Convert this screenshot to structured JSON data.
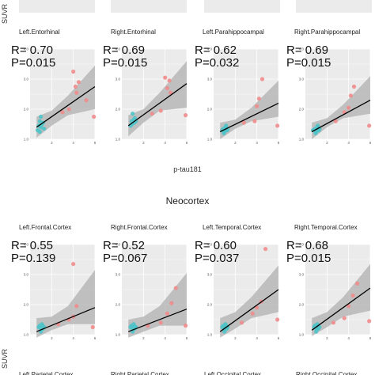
{
  "figure": {
    "y_axis_label": "SUVR",
    "x_axis_label": "p-tau181",
    "section_title": "Neocortex",
    "tick_labels_y": [
      "1.0",
      "2.0",
      "3.0",
      "4.0"
    ],
    "tick_labels_x": [
      "2",
      "4",
      "6"
    ],
    "bottom_partial_titles": [
      "Left.Parietal.Cortex",
      "Right.Parietal.Cortex",
      "Left.Occipital.Cortex",
      "Right.Occipital.Cortex"
    ],
    "colors": {
      "panel_bg": "#ebebeb",
      "grid": "#ffffff",
      "group_a": "#4fc3c8",
      "group_b": "#f08c8c",
      "fit": "#000000",
      "ci": "#b0b0b0"
    }
  },
  "chart_data": [
    {
      "type": "scatter",
      "title": "Left.Entorhinal",
      "stat_r": "R= 0.70",
      "stat_p": "P=0.015",
      "xlim": [
        0,
        6
      ],
      "ylim": [
        1,
        4
      ],
      "points_a": [
        [
          0.7,
          1.3
        ],
        [
          0.8,
          1.45
        ],
        [
          0.9,
          1.6
        ],
        [
          1.0,
          1.75
        ],
        [
          1.1,
          1.5
        ],
        [
          1.2,
          1.55
        ],
        [
          0.9,
          1.25
        ],
        [
          1.0,
          1.4
        ],
        [
          1.3,
          1.35
        ]
      ],
      "points_b": [
        [
          3.0,
          1.9
        ],
        [
          3.6,
          2.0
        ],
        [
          4.0,
          3.25
        ],
        [
          4.2,
          2.75
        ],
        [
          4.3,
          2.55
        ],
        [
          4.5,
          2.9
        ],
        [
          5.2,
          2.3
        ],
        [
          5.9,
          1.75
        ]
      ],
      "fit": [
        [
          0.6,
          1.4
        ],
        [
          6.0,
          2.75
        ]
      ],
      "ci_band": [
        [
          0.6,
          1.05,
          1.75
        ],
        [
          2.0,
          1.45,
          1.95
        ],
        [
          3.5,
          1.8,
          2.45
        ],
        [
          6.0,
          2.0,
          3.45
        ]
      ]
    },
    {
      "type": "scatter",
      "title": "Right.Entorhinal",
      "stat_r": "R= 0.69",
      "stat_p": "P=0.015",
      "xlim": [
        0,
        6
      ],
      "ylim": [
        1,
        4
      ],
      "points_a": [
        [
          0.8,
          1.45
        ],
        [
          0.9,
          1.6
        ],
        [
          1.0,
          1.85
        ],
        [
          1.1,
          1.65
        ],
        [
          1.2,
          1.7
        ],
        [
          0.95,
          1.5
        ],
        [
          1.15,
          1.55
        ],
        [
          1.3,
          1.6
        ]
      ],
      "points_b": [
        [
          2.8,
          1.85
        ],
        [
          3.6,
          1.95
        ],
        [
          4.0,
          3.05
        ],
        [
          4.2,
          2.7
        ],
        [
          4.4,
          2.95
        ],
        [
          4.5,
          2.55
        ],
        [
          5.9,
          1.8
        ]
      ],
      "fit": [
        [
          0.6,
          1.45
        ],
        [
          6.0,
          2.85
        ]
      ],
      "ci_band": [
        [
          0.6,
          1.1,
          1.8
        ],
        [
          2.0,
          1.55,
          2.0
        ],
        [
          3.5,
          1.95,
          2.55
        ],
        [
          6.0,
          2.05,
          3.6
        ]
      ]
    },
    {
      "type": "scatter",
      "title": "Left.Parahippocampal",
      "stat_r": "R= 0.62",
      "stat_p": "P=0.032",
      "xlim": [
        0,
        6
      ],
      "ylim": [
        1,
        4
      ],
      "points_a": [
        [
          0.8,
          1.3
        ],
        [
          0.9,
          1.35
        ],
        [
          1.0,
          1.25
        ],
        [
          1.1,
          1.4
        ],
        [
          1.2,
          1.3
        ],
        [
          1.3,
          1.35
        ],
        [
          0.95,
          1.2
        ],
        [
          1.15,
          1.45
        ],
        [
          1.25,
          1.3
        ]
      ],
      "points_b": [
        [
          2.8,
          1.55
        ],
        [
          3.8,
          1.6
        ],
        [
          4.0,
          2.1
        ],
        [
          4.2,
          2.35
        ],
        [
          4.5,
          3.0
        ],
        [
          5.9,
          1.45
        ]
      ],
      "fit": [
        [
          0.6,
          1.25
        ],
        [
          6.0,
          2.2
        ]
      ],
      "ci_band": [
        [
          0.6,
          1.0,
          1.55
        ],
        [
          2.0,
          1.35,
          1.65
        ],
        [
          3.5,
          1.6,
          2.05
        ],
        [
          6.0,
          1.75,
          2.95
        ]
      ]
    },
    {
      "type": "scatter",
      "title": "Right.Parahippocampal",
      "stat_r": "R= 0.69",
      "stat_p": "P=0.015",
      "xlim": [
        0,
        6
      ],
      "ylim": [
        1,
        4
      ],
      "points_a": [
        [
          0.7,
          1.3
        ],
        [
          0.9,
          1.35
        ],
        [
          1.0,
          1.25
        ],
        [
          1.1,
          1.4
        ],
        [
          1.2,
          1.3
        ],
        [
          1.3,
          1.35
        ],
        [
          0.95,
          1.2
        ],
        [
          1.15,
          1.45
        ],
        [
          1.25,
          1.3
        ]
      ],
      "points_b": [
        [
          2.8,
          1.6
        ],
        [
          3.6,
          1.9
        ],
        [
          4.0,
          2.05
        ],
        [
          4.2,
          2.45
        ],
        [
          4.5,
          2.75
        ],
        [
          5.9,
          1.45
        ]
      ],
      "fit": [
        [
          0.6,
          1.25
        ],
        [
          6.0,
          2.3
        ]
      ],
      "ci_band": [
        [
          0.6,
          1.0,
          1.55
        ],
        [
          2.0,
          1.4,
          1.7
        ],
        [
          3.5,
          1.7,
          2.15
        ],
        [
          6.0,
          1.85,
          3.1
        ]
      ]
    },
    {
      "type": "scatter",
      "title": "Left.Frontal.Cortex",
      "stat_r": "R= 0.55",
      "stat_p": "P=0.139",
      "xlim": [
        0,
        6
      ],
      "ylim": [
        1,
        4
      ],
      "points_a": [
        [
          0.8,
          1.25
        ],
        [
          0.9,
          1.3
        ],
        [
          1.0,
          1.2
        ],
        [
          1.1,
          1.35
        ],
        [
          1.2,
          1.2
        ],
        [
          1.3,
          1.25
        ],
        [
          1.0,
          1.1
        ],
        [
          1.15,
          1.3
        ]
      ],
      "points_b": [
        [
          2.6,
          1.35
        ],
        [
          3.6,
          1.5
        ],
        [
          4.0,
          1.6
        ],
        [
          4.0,
          3.35
        ],
        [
          4.3,
          1.95
        ],
        [
          5.8,
          1.25
        ]
      ],
      "fit": [
        [
          0.6,
          1.1
        ],
        [
          6.0,
          1.9
        ]
      ],
      "ci_band": [
        [
          0.6,
          0.9,
          1.55
        ],
        [
          2.0,
          1.15,
          1.6
        ],
        [
          3.5,
          1.35,
          1.95
        ],
        [
          6.0,
          1.35,
          3.15
        ]
      ]
    },
    {
      "type": "scatter",
      "title": "Right.Frontal.Cortex",
      "stat_r": "R= 0.52",
      "stat_p": "P=0.067",
      "xlim": [
        0,
        6
      ],
      "ylim": [
        1,
        4
      ],
      "points_a": [
        [
          0.8,
          1.25
        ],
        [
          0.9,
          1.3
        ],
        [
          1.0,
          1.2
        ],
        [
          1.1,
          1.35
        ],
        [
          1.2,
          1.2
        ],
        [
          1.3,
          1.25
        ],
        [
          1.0,
          1.1
        ],
        [
          1.15,
          1.3
        ]
      ],
      "points_b": [
        [
          2.4,
          1.3
        ],
        [
          3.6,
          1.4
        ],
        [
          4.2,
          1.7
        ],
        [
          4.6,
          2.05
        ],
        [
          5.0,
          2.55
        ],
        [
          5.9,
          1.3
        ]
      ],
      "fit": [
        [
          0.6,
          1.1
        ],
        [
          6.0,
          1.85
        ]
      ],
      "ci_band": [
        [
          0.6,
          0.9,
          1.5
        ],
        [
          2.0,
          1.1,
          1.6
        ],
        [
          3.5,
          1.3,
          1.95
        ],
        [
          6.0,
          1.3,
          3.05
        ]
      ]
    },
    {
      "type": "scatter",
      "title": "Left.Temporal.Cortex",
      "stat_r": "R= 0.60",
      "stat_p": "P=0.037",
      "xlim": [
        0,
        6
      ],
      "ylim": [
        1,
        4
      ],
      "points_a": [
        [
          0.8,
          1.25
        ],
        [
          0.9,
          1.3
        ],
        [
          1.0,
          1.2
        ],
        [
          1.1,
          1.35
        ],
        [
          1.2,
          1.2
        ],
        [
          1.3,
          1.25
        ],
        [
          1.0,
          1.1
        ],
        [
          1.15,
          1.3
        ]
      ],
      "points_b": [
        [
          2.6,
          1.4
        ],
        [
          3.6,
          1.7
        ],
        [
          4.0,
          1.9
        ],
        [
          4.4,
          2.1
        ],
        [
          4.8,
          3.85
        ],
        [
          5.9,
          1.5
        ]
      ],
      "fit": [
        [
          0.6,
          1.1
        ],
        [
          6.0,
          2.5
        ]
      ],
      "ci_band": [
        [
          0.6,
          0.9,
          1.55
        ],
        [
          2.0,
          1.2,
          1.75
        ],
        [
          3.5,
          1.55,
          2.25
        ],
        [
          6.0,
          1.75,
          3.3
        ]
      ]
    },
    {
      "type": "scatter",
      "title": "Right.Temporal.Cortex",
      "stat_r": "R= 0.68",
      "stat_p": "P=0.015",
      "xlim": [
        0,
        6
      ],
      "ylim": [
        1,
        4
      ],
      "points_a": [
        [
          0.8,
          1.25
        ],
        [
          0.9,
          1.3
        ],
        [
          1.0,
          1.2
        ],
        [
          1.1,
          1.35
        ],
        [
          1.2,
          1.2
        ],
        [
          1.3,
          1.25
        ],
        [
          1.0,
          1.1
        ],
        [
          1.15,
          1.3
        ]
      ],
      "points_b": [
        [
          2.6,
          1.4
        ],
        [
          3.6,
          1.55
        ],
        [
          4.0,
          1.95
        ],
        [
          4.4,
          2.3
        ],
        [
          4.8,
          2.7
        ],
        [
          5.9,
          1.45
        ]
      ],
      "fit": [
        [
          0.6,
          1.15
        ],
        [
          6.0,
          2.55
        ]
      ],
      "ci_band": [
        [
          0.6,
          0.95,
          1.55
        ],
        [
          2.0,
          1.25,
          1.75
        ],
        [
          3.5,
          1.6,
          2.25
        ],
        [
          6.0,
          1.8,
          3.35
        ]
      ]
    }
  ]
}
